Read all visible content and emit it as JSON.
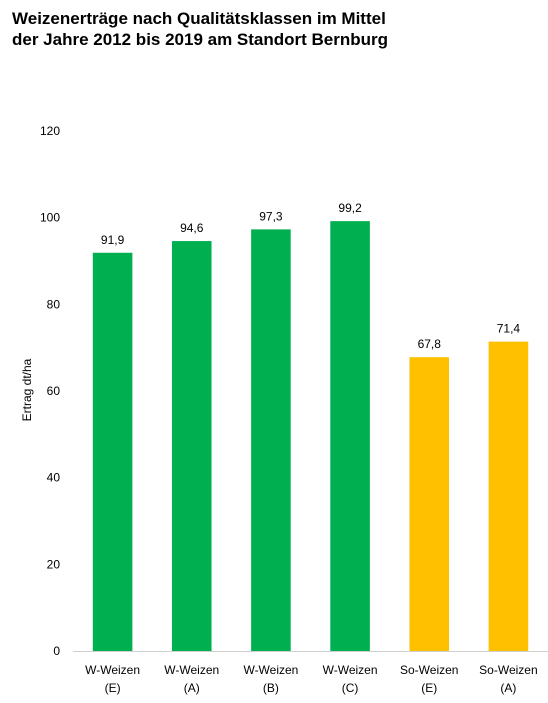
{
  "chart_data": {
    "type": "bar",
    "title_lines": [
      "Weizenerträge nach Qualitätsklassen im Mittel",
      "der Jahre 2012 bis 2019 am Standort Bernburg"
    ],
    "ylabel": "Ertrag dt/ha",
    "xlabel": "",
    "ylim": [
      0,
      120
    ],
    "yticks": [
      "0",
      "20",
      "40",
      "60",
      "80",
      "100",
      "120"
    ],
    "grid": false,
    "categories": [
      [
        "W-Weizen",
        "(E)"
      ],
      [
        "W-Weizen",
        "(A)"
      ],
      [
        "W-Weizen",
        "(B)"
      ],
      [
        "W-Weizen",
        "(C)"
      ],
      [
        "So-Weizen",
        "(E)"
      ],
      [
        "So-Weizen",
        "(A)"
      ]
    ],
    "values": [
      91.9,
      94.6,
      97.3,
      99.2,
      67.8,
      71.4
    ],
    "value_labels": [
      "91,9",
      "94,6",
      "97,3",
      "99,2",
      "67,8",
      "71,4"
    ],
    "colors": [
      "#00b050",
      "#00b050",
      "#00b050",
      "#00b050",
      "#ffc000",
      "#ffc000"
    ]
  }
}
